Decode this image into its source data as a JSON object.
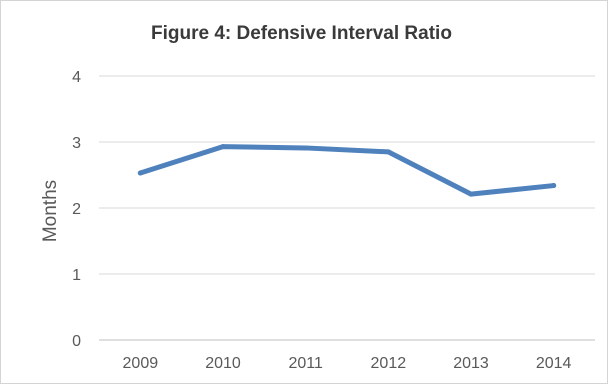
{
  "chart_data": {
    "type": "line",
    "title": "Figure 4: Defensive Interval Ratio",
    "xlabel": "",
    "ylabel": "Months",
    "categories": [
      "2009",
      "2010",
      "2011",
      "2012",
      "2013",
      "2014"
    ],
    "series": [
      {
        "values": [
          2.53,
          2.93,
          2.91,
          2.85,
          2.21,
          2.34
        ],
        "color": "#4f81bd"
      }
    ],
    "ylim": [
      0,
      4
    ],
    "yticks": [
      "0",
      "1",
      "2",
      "3",
      "4"
    ],
    "grid": true,
    "legend": "none"
  }
}
